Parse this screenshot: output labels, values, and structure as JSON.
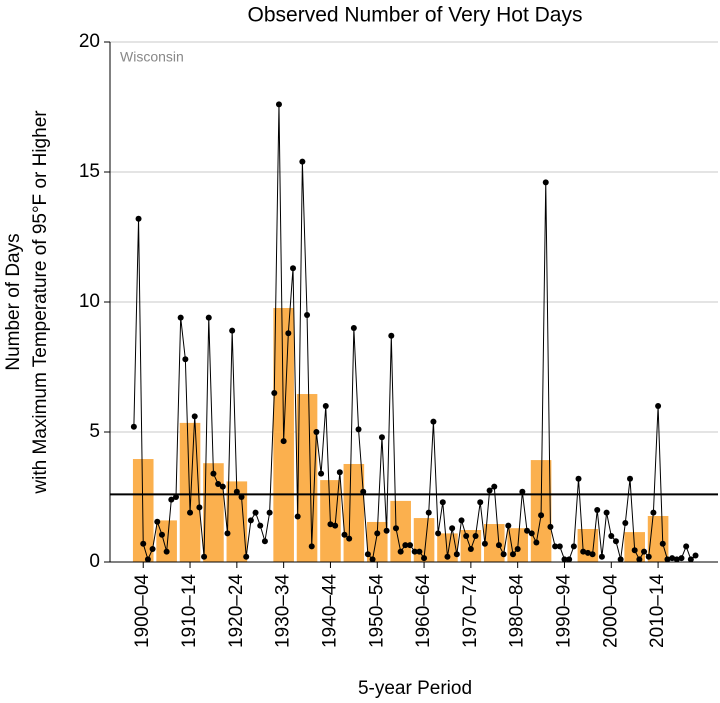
{
  "chart_data": {
    "type": "bar-line",
    "title": "Observed Number of Very Hot Days",
    "annotation": "Wisconsin",
    "ylabel": [
      "Number of Days",
      "with Maximum Temperature of 95°F or Higher"
    ],
    "xlabel": "5-year Period",
    "categories": [
      "1900–04",
      null,
      "1910–14",
      null,
      "1920–24",
      null,
      "1930–34",
      null,
      "1940–44",
      null,
      "1950–54",
      null,
      "1960–64",
      null,
      "1970–74",
      null,
      "1980–84",
      null,
      "1990–94",
      null,
      "2000–04",
      null,
      "2010–14",
      null
    ],
    "category_years": 5,
    "bars": {
      "color": "#fbb04e",
      "values": [
        3.96,
        1.6,
        5.35,
        3.8,
        3.1,
        null,
        9.77,
        6.46,
        3.15,
        3.77,
        1.54,
        2.35,
        1.69,
        1.1,
        1.23,
        1.46,
        1.3,
        3.92,
        null,
        1.27,
        null,
        1.15,
        1.77,
        null
      ]
    },
    "annual": {
      "color": "#000000",
      "x": [
        1900,
        1901,
        1902,
        1903,
        1904,
        1905,
        1906,
        1907,
        1908,
        1909,
        1910,
        1911,
        1912,
        1913,
        1914,
        1915,
        1916,
        1917,
        1918,
        1919,
        1920,
        1921,
        1922,
        1923,
        1924,
        1925,
        1926,
        1927,
        1928,
        1929,
        1930,
        1931,
        1932,
        1933,
        1934,
        1935,
        1936,
        1937,
        1938,
        1939,
        1940,
        1941,
        1942,
        1943,
        1944,
        1945,
        1946,
        1947,
        1948,
        1949,
        1950,
        1951,
        1952,
        1953,
        1954,
        1955,
        1956,
        1957,
        1958,
        1959,
        1960,
        1961,
        1962,
        1963,
        1964,
        1965,
        1966,
        1967,
        1968,
        1969,
        1970,
        1971,
        1972,
        1973,
        1974,
        1975,
        1976,
        1977,
        1978,
        1979,
        1980,
        1981,
        1982,
        1983,
        1984,
        1985,
        1986,
        1987,
        1988,
        1989,
        1990,
        1991,
        1992,
        1993,
        1994,
        1995,
        1996,
        1997,
        1998,
        1999,
        2000,
        2001,
        2002,
        2003,
        2004,
        2005,
        2006,
        2007,
        2008,
        2009,
        2010,
        2011,
        2012,
        2013,
        2014,
        2015,
        2016,
        2017,
        2018,
        2019,
        2020
      ],
      "values": [
        5.2,
        13.2,
        0.7,
        0.1,
        0.5,
        1.55,
        1.05,
        0.4,
        2.4,
        2.5,
        9.4,
        7.8,
        1.9,
        5.6,
        2.1,
        0.2,
        9.4,
        3.4,
        3.0,
        2.9,
        1.1,
        8.9,
        2.7,
        2.5,
        0.2,
        1.6,
        1.9,
        1.4,
        0.8,
        1.9,
        6.5,
        17.6,
        4.65,
        8.8,
        11.3,
        1.75,
        15.4,
        9.5,
        0.6,
        5.0,
        3.4,
        6.0,
        1.45,
        1.4,
        3.45,
        1.05,
        0.9,
        9.0,
        5.1,
        2.7,
        0.3,
        0.1,
        1.1,
        4.8,
        1.2,
        8.7,
        1.3,
        0.4,
        0.65,
        0.65,
        0.4,
        0.4,
        0.15,
        1.9,
        5.4,
        1.1,
        2.3,
        0.2,
        1.3,
        0.3,
        1.6,
        1.0,
        0.5,
        1.0,
        2.3,
        0.7,
        2.75,
        2.9,
        0.65,
        0.3,
        1.4,
        0.3,
        0.5,
        2.7,
        1.2,
        1.1,
        0.75,
        1.8,
        14.6,
        1.35,
        0.6,
        0.6,
        0.1,
        0.1,
        0.6,
        3.2,
        0.4,
        0.35,
        0.3,
        2.0,
        0.2,
        1.9,
        1.0,
        0.8,
        0.1,
        1.5,
        3.2,
        0.45,
        0.1,
        0.4,
        0.2,
        1.9,
        6.0,
        0.7,
        0.1,
        0.15,
        0.1,
        0.15,
        0.6,
        0.1,
        0.25
      ]
    },
    "average": 2.6,
    "xlim": [
      1894.9,
      2024.8
    ],
    "ylim": [
      0,
      20
    ],
    "yticks": [
      0,
      5,
      10,
      15,
      20
    ],
    "grid": true
  }
}
